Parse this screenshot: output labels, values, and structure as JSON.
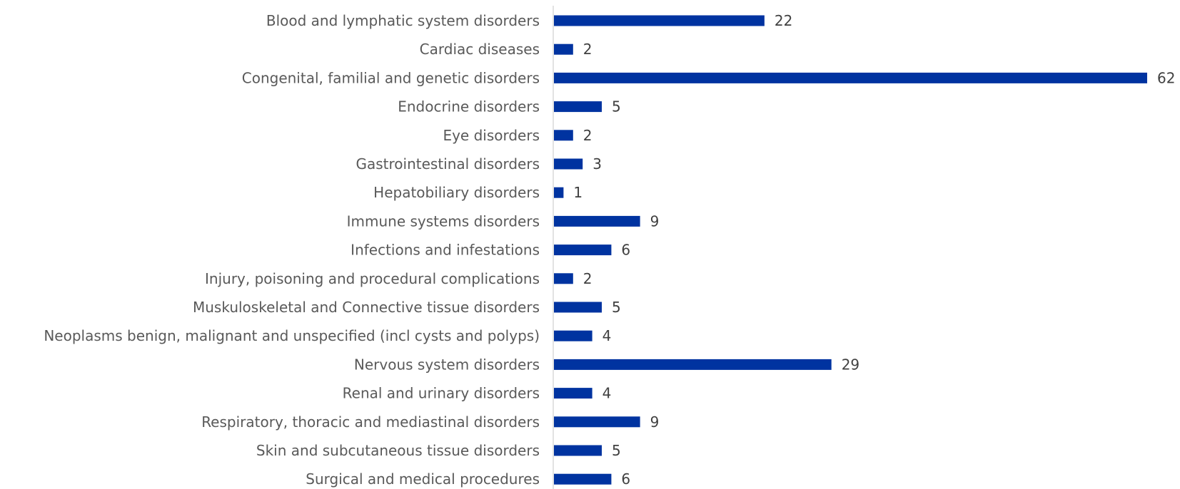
{
  "chart_data": {
    "type": "bar",
    "orientation": "horizontal",
    "categories": [
      "Blood and lymphatic system disorders",
      "Cardiac diseases",
      "Congenital, familial and genetic disorders",
      "Endocrine disorders",
      "Eye disorders",
      "Gastrointestinal disorders",
      "Hepatobiliary disorders",
      "Immune systems disorders",
      "Infections and infestations",
      "Injury, poisoning and procedural complications",
      "Muskuloskeletal and Connective tissue disorders",
      "Neoplasms benign, malignant and unspecified (incl cysts and polyps)",
      "Nervous system disorders",
      "Renal and urinary disorders",
      "Respiratory, thoracic and mediastinal disorders",
      "Skin and subcutaneous tissue disorders",
      "Surgical and medical procedures"
    ],
    "values": [
      22,
      2,
      62,
      5,
      2,
      3,
      1,
      9,
      6,
      2,
      5,
      4,
      29,
      4,
      9,
      5,
      6
    ],
    "title": "",
    "xlabel": "",
    "ylabel": "",
    "xlim": [
      0,
      62
    ],
    "grid": false,
    "legend": "none",
    "data_labels": true,
    "colors": {
      "bar": "#0033a0",
      "axis": "#d9d9d9",
      "category_text": "#595959",
      "value_text": "#404040"
    }
  }
}
